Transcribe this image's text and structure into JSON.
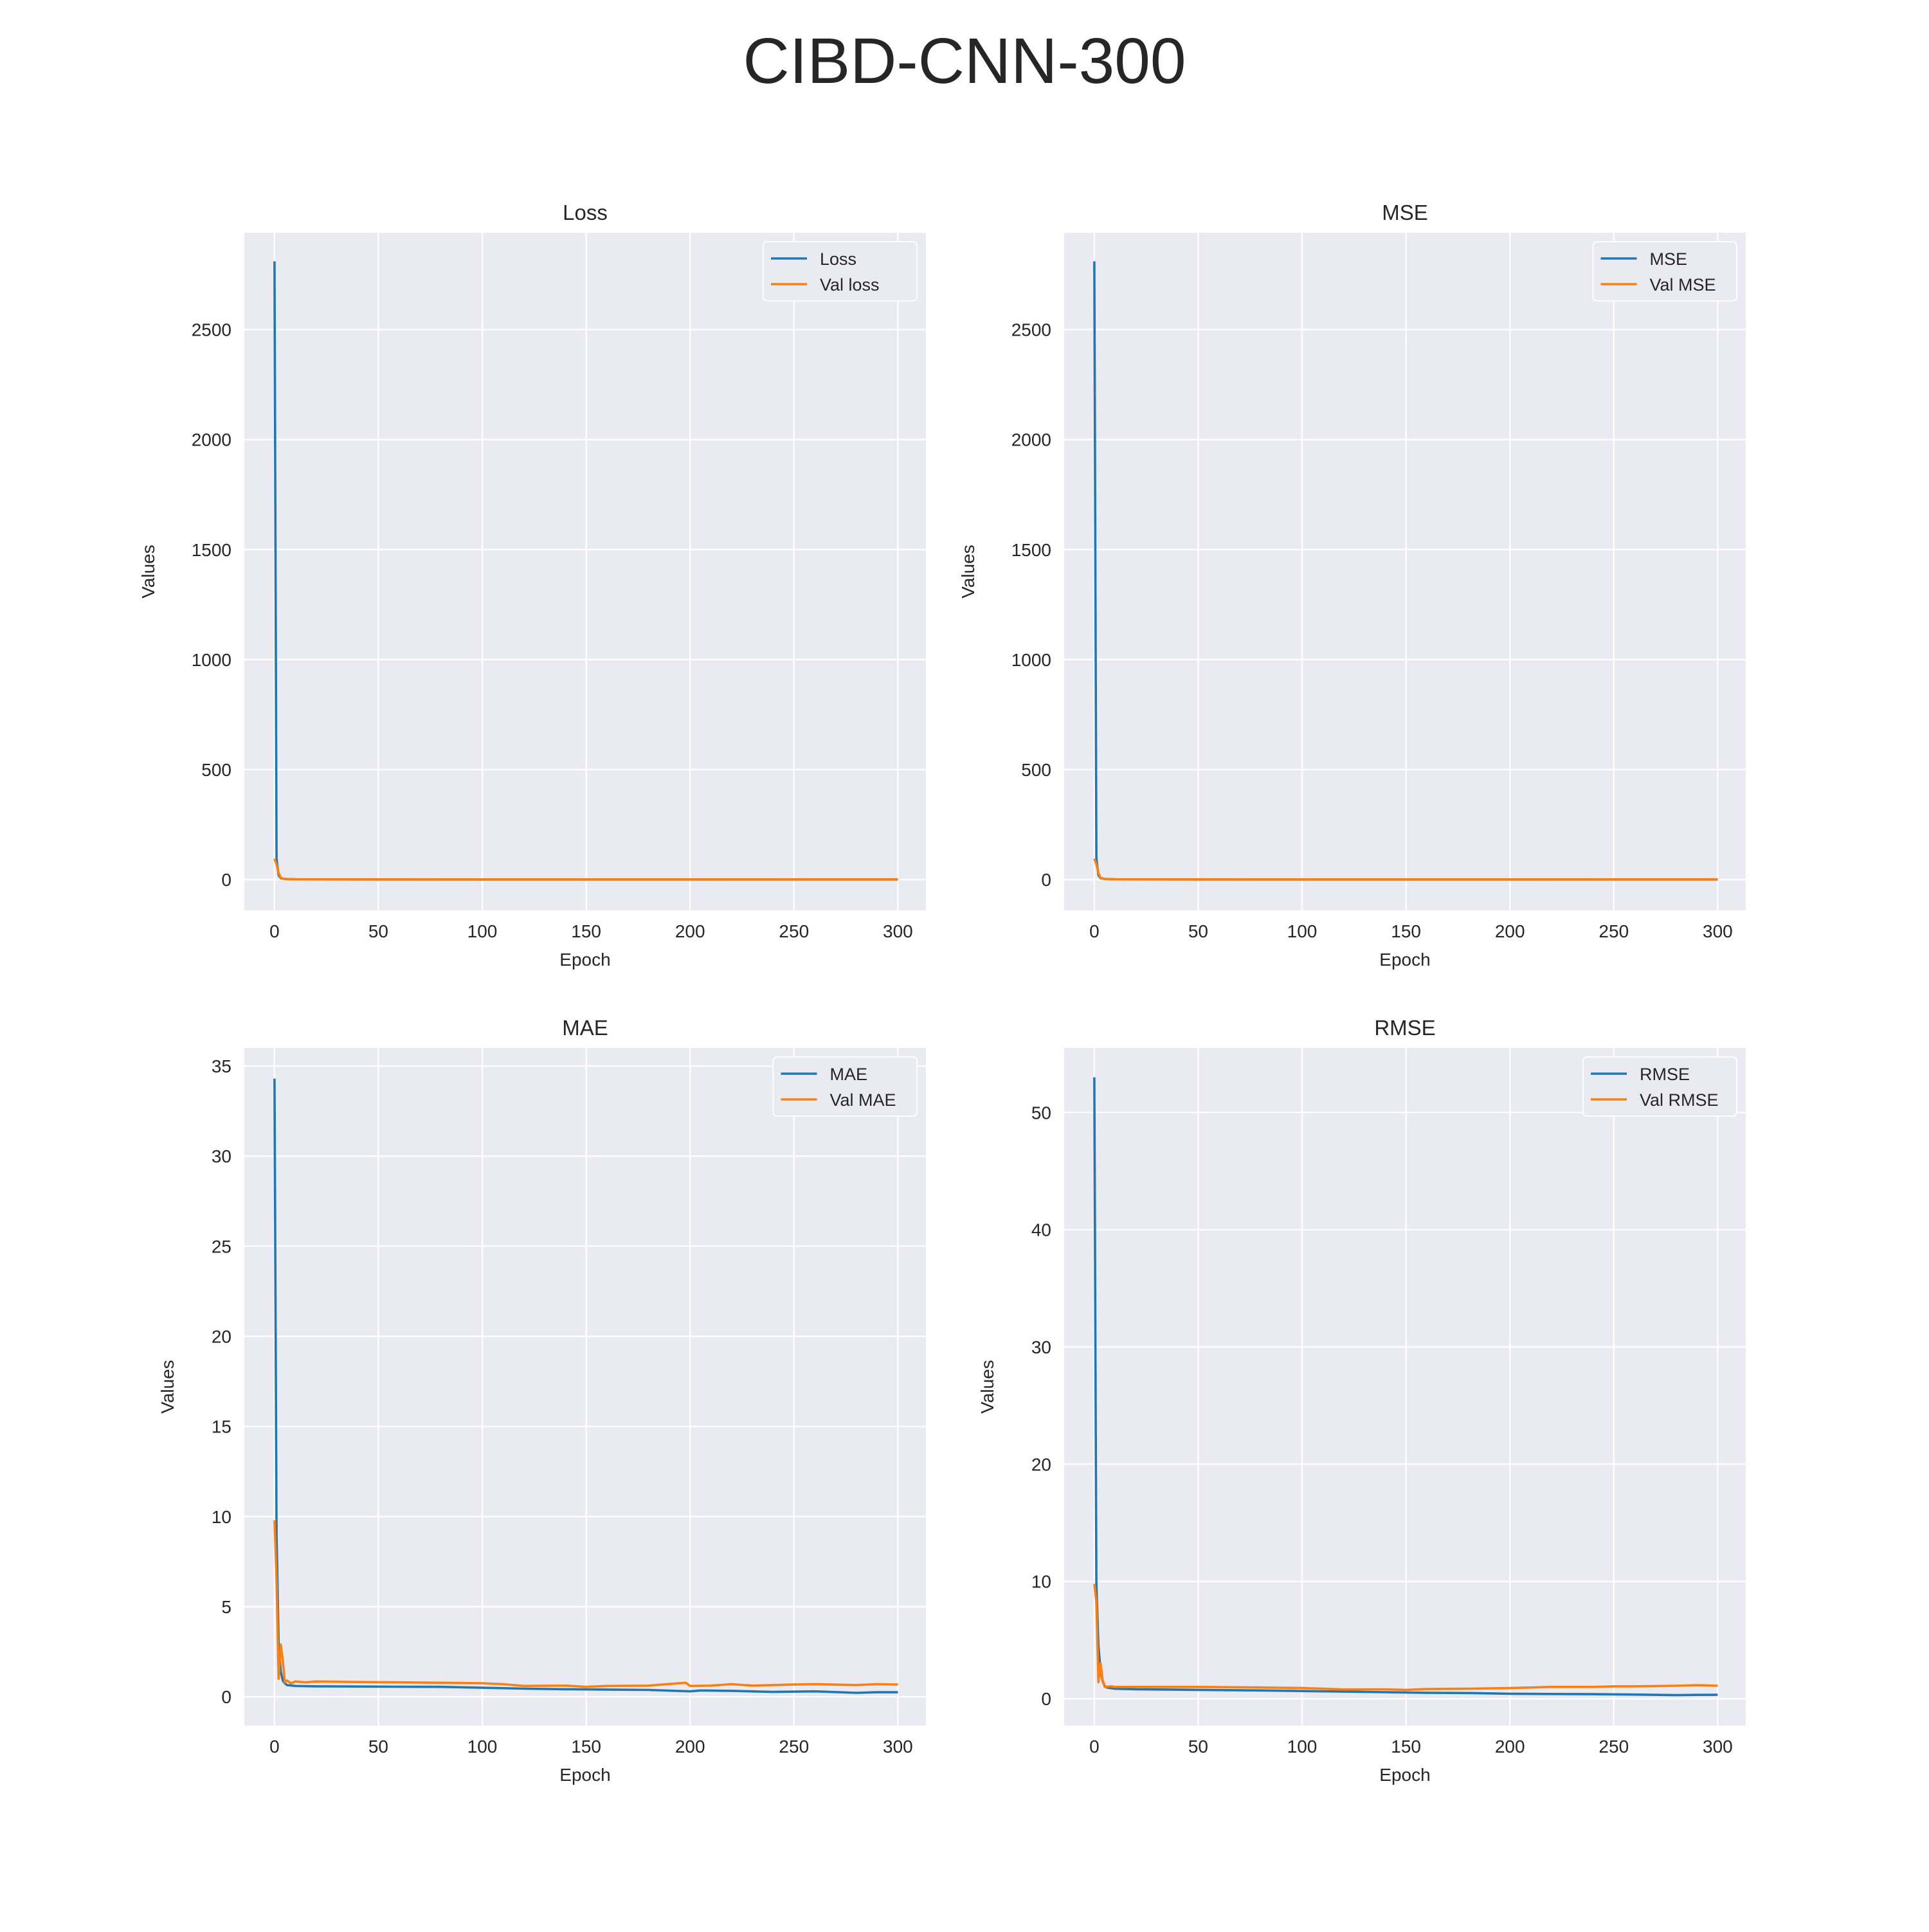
{
  "figure": {
    "title": "CIBD-CNN-300",
    "colors": {
      "train": "#1f77b4",
      "val": "#ff7f0e",
      "plot_bg": "#eaeaf2",
      "grid": "#ffffff"
    }
  },
  "chart_data": [
    {
      "type": "line",
      "title": "Loss",
      "xlabel": "Epoch",
      "ylabel": "Values",
      "xlim": [
        -14.5,
        313.5
      ],
      "ylim": [
        -140,
        2940
      ],
      "xticks": [
        0,
        50,
        100,
        150,
        200,
        250,
        300
      ],
      "yticks": [
        0,
        500,
        1000,
        1500,
        2000,
        2500
      ],
      "grid": true,
      "legend_position": "top-right",
      "series": [
        {
          "name": "Loss",
          "color": "#1f77b4",
          "points": [
            [
              0,
              2810
            ],
            [
              1,
              95
            ],
            [
              2,
              20
            ],
            [
              3,
              6
            ],
            [
              5,
              3
            ],
            [
              10,
              1
            ],
            [
              50,
              0.6
            ],
            [
              100,
              0.5
            ],
            [
              150,
              0.4
            ],
            [
              200,
              0.35
            ],
            [
              250,
              0.3
            ],
            [
              300,
              0.3
            ]
          ]
        },
        {
          "name": "Val loss",
          "color": "#ff7f0e",
          "points": [
            [
              0,
              95
            ],
            [
              1,
              70
            ],
            [
              2,
              30
            ],
            [
              3,
              8
            ],
            [
              5,
              3
            ],
            [
              10,
              1.2
            ],
            [
              50,
              1
            ],
            [
              100,
              0.9
            ],
            [
              150,
              0.8
            ],
            [
              200,
              0.9
            ],
            [
              250,
              1
            ],
            [
              300,
              1.1
            ]
          ]
        }
      ]
    },
    {
      "type": "line",
      "title": "MSE",
      "xlabel": "Epoch",
      "ylabel": "Values",
      "xlim": [
        -14.5,
        313.5
      ],
      "ylim": [
        -140,
        2940
      ],
      "xticks": [
        0,
        50,
        100,
        150,
        200,
        250,
        300
      ],
      "yticks": [
        0,
        500,
        1000,
        1500,
        2000,
        2500
      ],
      "grid": true,
      "legend_position": "top-right",
      "series": [
        {
          "name": "MSE",
          "color": "#1f77b4",
          "points": [
            [
              0,
              2810
            ],
            [
              1,
              95
            ],
            [
              2,
              20
            ],
            [
              3,
              6
            ],
            [
              5,
              3
            ],
            [
              10,
              1
            ],
            [
              50,
              0.6
            ],
            [
              100,
              0.5
            ],
            [
              150,
              0.4
            ],
            [
              200,
              0.35
            ],
            [
              250,
              0.3
            ],
            [
              300,
              0.3
            ]
          ]
        },
        {
          "name": "Val MSE",
          "color": "#ff7f0e",
          "points": [
            [
              0,
              95
            ],
            [
              1,
              70
            ],
            [
              2,
              30
            ],
            [
              3,
              8
            ],
            [
              5,
              3
            ],
            [
              10,
              1.2
            ],
            [
              50,
              1
            ],
            [
              100,
              0.9
            ],
            [
              150,
              0.8
            ],
            [
              200,
              0.9
            ],
            [
              250,
              1
            ],
            [
              300,
              1.1
            ]
          ]
        }
      ]
    },
    {
      "type": "line",
      "title": "MAE",
      "xlabel": "Epoch",
      "ylabel": "Values",
      "xlim": [
        -14.5,
        313.5
      ],
      "ylim": [
        -1.6,
        36
      ],
      "xticks": [
        0,
        50,
        100,
        150,
        200,
        250,
        300
      ],
      "yticks": [
        0,
        5,
        10,
        15,
        20,
        25,
        30,
        35
      ],
      "grid": true,
      "legend_position": "top-right",
      "series": [
        {
          "name": "MAE",
          "color": "#1f77b4",
          "points": [
            [
              0,
              34.3
            ],
            [
              1,
              9.0
            ],
            [
              2,
              3.0
            ],
            [
              3,
              1.4
            ],
            [
              4,
              0.9
            ],
            [
              5,
              0.75
            ],
            [
              6,
              0.65
            ],
            [
              10,
              0.6
            ],
            [
              20,
              0.58
            ],
            [
              40,
              0.57
            ],
            [
              60,
              0.56
            ],
            [
              80,
              0.55
            ],
            [
              100,
              0.5
            ],
            [
              120,
              0.45
            ],
            [
              140,
              0.42
            ],
            [
              160,
              0.4
            ],
            [
              180,
              0.38
            ],
            [
              200,
              0.3
            ],
            [
              205,
              0.35
            ],
            [
              220,
              0.33
            ],
            [
              240,
              0.27
            ],
            [
              260,
              0.3
            ],
            [
              280,
              0.22
            ],
            [
              290,
              0.25
            ],
            [
              300,
              0.25
            ]
          ]
        },
        {
          "name": "Val MAE",
          "color": "#ff7f0e",
          "points": [
            [
              0,
              9.8
            ],
            [
              1,
              6.5
            ],
            [
              2,
              1.0
            ],
            [
              3,
              2.9
            ],
            [
              4,
              2.0
            ],
            [
              5,
              0.8
            ],
            [
              6,
              0.9
            ],
            [
              8,
              0.75
            ],
            [
              10,
              0.85
            ],
            [
              15,
              0.8
            ],
            [
              20,
              0.85
            ],
            [
              40,
              0.82
            ],
            [
              60,
              0.8
            ],
            [
              80,
              0.78
            ],
            [
              100,
              0.75
            ],
            [
              110,
              0.7
            ],
            [
              120,
              0.6
            ],
            [
              140,
              0.62
            ],
            [
              150,
              0.55
            ],
            [
              160,
              0.6
            ],
            [
              180,
              0.62
            ],
            [
              198,
              0.78
            ],
            [
              200,
              0.6
            ],
            [
              210,
              0.62
            ],
            [
              220,
              0.7
            ],
            [
              230,
              0.62
            ],
            [
              250,
              0.68
            ],
            [
              260,
              0.7
            ],
            [
              280,
              0.65
            ],
            [
              290,
              0.7
            ],
            [
              300,
              0.68
            ]
          ]
        }
      ]
    },
    {
      "type": "line",
      "title": "RMSE",
      "xlabel": "Epoch",
      "ylabel": "Values",
      "xlim": [
        -14.5,
        313.5
      ],
      "ylim": [
        -2.3,
        55.5
      ],
      "xticks": [
        0,
        50,
        100,
        150,
        200,
        250,
        300
      ],
      "yticks": [
        0,
        10,
        20,
        30,
        40,
        50
      ],
      "grid": true,
      "legend_position": "top-right",
      "series": [
        {
          "name": "RMSE",
          "color": "#1f77b4",
          "points": [
            [
              0,
              53.0
            ],
            [
              1,
              9.7
            ],
            [
              2,
              4.5
            ],
            [
              3,
              2.4
            ],
            [
              4,
              1.5
            ],
            [
              5,
              1.1
            ],
            [
              6,
              0.95
            ],
            [
              10,
              0.85
            ],
            [
              20,
              0.8
            ],
            [
              50,
              0.75
            ],
            [
              80,
              0.7
            ],
            [
              100,
              0.65
            ],
            [
              120,
              0.6
            ],
            [
              140,
              0.55
            ],
            [
              160,
              0.5
            ],
            [
              180,
              0.48
            ],
            [
              200,
              0.42
            ],
            [
              220,
              0.4
            ],
            [
              240,
              0.38
            ],
            [
              260,
              0.35
            ],
            [
              280,
              0.3
            ],
            [
              290,
              0.32
            ],
            [
              300,
              0.33
            ]
          ]
        },
        {
          "name": "Val RMSE",
          "color": "#ff7f0e",
          "points": [
            [
              0,
              9.8
            ],
            [
              1,
              8.2
            ],
            [
              2,
              1.4
            ],
            [
              3,
              3.0
            ],
            [
              4,
              1.6
            ],
            [
              5,
              1.0
            ],
            [
              8,
              1.05
            ],
            [
              10,
              1.0
            ],
            [
              20,
              1.0
            ],
            [
              50,
              1.0
            ],
            [
              80,
              0.95
            ],
            [
              100,
              0.9
            ],
            [
              110,
              0.85
            ],
            [
              120,
              0.78
            ],
            [
              140,
              0.8
            ],
            [
              150,
              0.75
            ],
            [
              160,
              0.82
            ],
            [
              180,
              0.85
            ],
            [
              200,
              0.9
            ],
            [
              210,
              0.95
            ],
            [
              220,
              1.0
            ],
            [
              240,
              1.0
            ],
            [
              250,
              1.05
            ],
            [
              260,
              1.05
            ],
            [
              280,
              1.1
            ],
            [
              290,
              1.15
            ],
            [
              300,
              1.1
            ]
          ]
        }
      ]
    }
  ]
}
